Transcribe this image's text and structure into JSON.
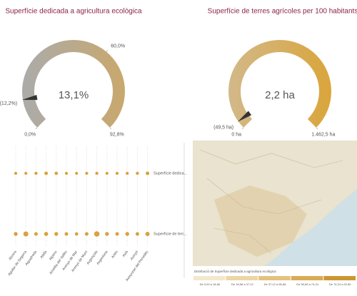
{
  "chart_data": [
    {
      "type": "gauge",
      "title": "Superfície dedicada a agricultura ecològica",
      "values": [
        13.1
      ],
      "value_labels": [
        "13,1%"
      ],
      "xlim": [
        0,
        92.8
      ],
      "xticks": [
        {
          "value": 0,
          "label": "0,0%"
        },
        {
          "value": 60,
          "label": "60,0%"
        },
        {
          "value": 92.8,
          "label": "92,8%"
        }
      ],
      "reference": {
        "value": 12.2,
        "label": "(12,2%)"
      },
      "colors": [
        "#ababab",
        "#c9a86c"
      ]
    },
    {
      "type": "gauge",
      "title": "Superfície de terres agrícoles per 100 habitants",
      "values": [
        2.2
      ],
      "value_labels": [
        "2,2 ha"
      ],
      "xlim": [
        0,
        1462.5
      ],
      "xticks": [
        {
          "value": 0,
          "label": "0 ha"
        },
        {
          "value": 1462.5,
          "label": "1.462,5 ha"
        }
      ],
      "reference": {
        "value": 49.5,
        "label": "(49,5 ha)"
      },
      "colors": [
        "#d2b98a",
        "#daa53a"
      ]
    },
    {
      "type": "dot",
      "categories": [
        "Abrera",
        "Aguilar de Segarra",
        "Aiguafreda",
        "Alella",
        "Alpens",
        "Ametlla del Vallès",
        "Arenys de Mar",
        "Arenys de Munt",
        "Argençola",
        "Argentona",
        "Artés",
        "Avià",
        "Avinyó",
        "Avinyonet del Penedès"
      ],
      "series": [
        {
          "name": "Superfície dedica...",
          "color": "#d9a23c",
          "values": [
            5,
            4,
            6,
            12,
            10,
            5,
            4,
            5,
            6,
            4,
            5,
            5,
            6,
            15
          ]
        },
        {
          "name": "Superfície de terr...",
          "color": "#d9a23c",
          "values": [
            20,
            60,
            15,
            25,
            20,
            15,
            10,
            15,
            80,
            20,
            15,
            20,
            15,
            30
          ]
        }
      ]
    },
    {
      "type": "map",
      "title": "Distribució de Superfície dedicada a agricultura ecològica",
      "legend": [
        {
          "label": "De 0,00 a 18,56",
          "color": "#f4e8cc"
        },
        {
          "label": "De 18,56 a 37,12",
          "color": "#ecd6a6"
        },
        {
          "label": "De 37,12 a 55,68",
          "color": "#e3c27f"
        },
        {
          "label": "De 55,68 a 74,24",
          "color": "#d9ab57"
        },
        {
          "label": "De 74,24 a 92,80",
          "color": "#cc9632"
        }
      ]
    }
  ]
}
